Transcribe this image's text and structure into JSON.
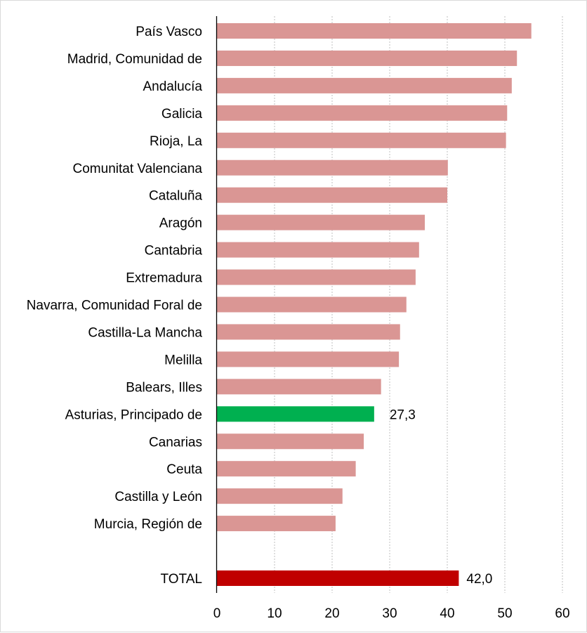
{
  "chart_data": {
    "type": "bar",
    "orientation": "horizontal",
    "categories": [
      "País Vasco",
      "Madrid, Comunidad de",
      "Andalucía",
      "Galicia",
      "Rioja, La",
      "Comunitat Valenciana",
      "Cataluña",
      "Aragón",
      "Cantabria",
      "Extremadura",
      "Navarra, Comunidad Foral de",
      "Castilla-La Mancha",
      "Melilla",
      "Balears, Illes",
      "Asturias, Principado de",
      "Canarias",
      "Ceuta",
      "Castilla y León",
      "Murcia, Región de",
      "",
      "TOTAL"
    ],
    "values": [
      54.6,
      52.1,
      51.2,
      50.4,
      50.2,
      40.1,
      40.0,
      36.1,
      35.1,
      34.5,
      32.9,
      31.8,
      31.6,
      28.5,
      27.3,
      25.5,
      24.1,
      21.8,
      20.6,
      null,
      42.0
    ],
    "data_labels": {
      "14": "27,3",
      "20": "42,0"
    },
    "colors": {
      "default": "#da9694",
      "highlight": "#00b050",
      "total": "#c00000",
      "grid": "#bfbfbf",
      "axis": "#000000"
    },
    "highlight_index": 14,
    "total_index": 20,
    "xlim": [
      0,
      60
    ],
    "xticks": [
      "0",
      "10",
      "20",
      "30",
      "40",
      "50",
      "60"
    ],
    "grid": "vertical dotted",
    "title": "",
    "xlabel": "",
    "ylabel": ""
  }
}
